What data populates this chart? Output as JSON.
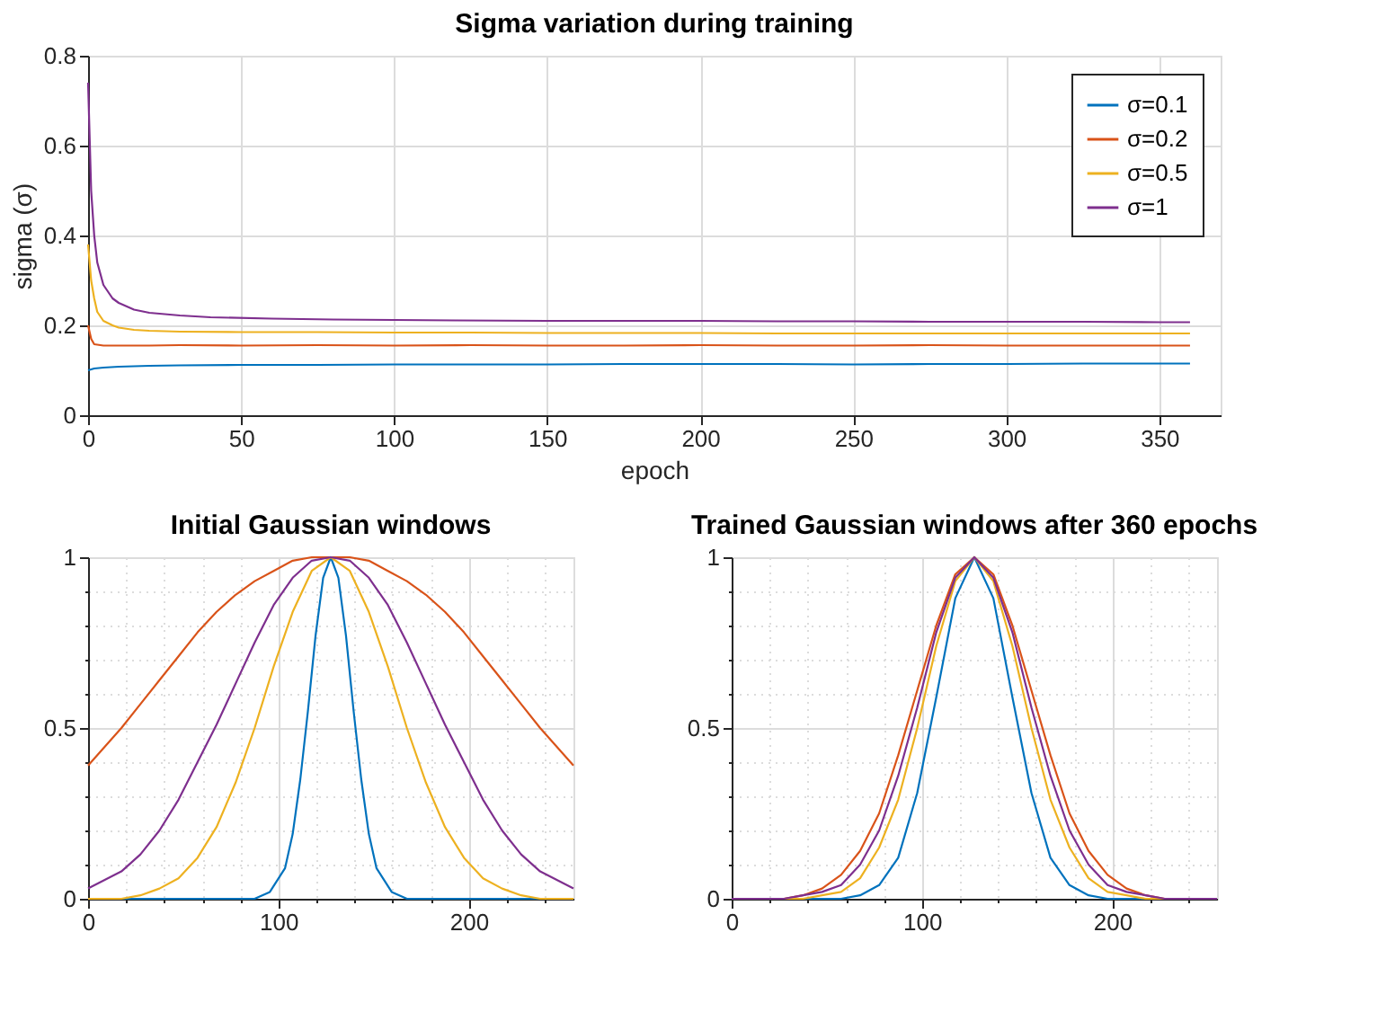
{
  "chart_data": [
    {
      "type": "line",
      "title": "Sigma variation during training",
      "xlabel": "epoch",
      "ylabel": "sigma (σ)",
      "xlim": [
        0,
        370
      ],
      "xticks": [
        0,
        50,
        100,
        150,
        200,
        250,
        300,
        350
      ],
      "ylim": [
        0,
        0.8
      ],
      "yticks": [
        0,
        0.2,
        0.4,
        0.6,
        0.8
      ],
      "grid": true,
      "legend": "top right",
      "series": [
        {
          "name": "σ=0.1",
          "color": "#0072bd",
          "x": [
            0,
            2,
            5,
            10,
            20,
            30,
            50,
            75,
            100,
            125,
            150,
            175,
            200,
            225,
            250,
            275,
            300,
            325,
            350,
            360
          ],
          "values": [
            0.1,
            0.104,
            0.106,
            0.108,
            0.11,
            0.111,
            0.112,
            0.112,
            0.113,
            0.113,
            0.113,
            0.114,
            0.114,
            0.114,
            0.113,
            0.114,
            0.114,
            0.115,
            0.115,
            0.115
          ]
        },
        {
          "name": "σ=0.2",
          "color": "#d95319",
          "x": [
            0,
            1,
            2,
            5,
            10,
            20,
            30,
            50,
            75,
            100,
            125,
            150,
            175,
            200,
            225,
            250,
            275,
            300,
            325,
            350,
            360
          ],
          "values": [
            0.2,
            0.17,
            0.158,
            0.155,
            0.155,
            0.155,
            0.156,
            0.155,
            0.156,
            0.155,
            0.156,
            0.155,
            0.155,
            0.156,
            0.155,
            0.155,
            0.156,
            0.155,
            0.155,
            0.155,
            0.155
          ]
        },
        {
          "name": "σ=0.5",
          "color": "#edb120",
          "x": [
            0,
            1,
            2,
            3,
            5,
            8,
            10,
            15,
            20,
            30,
            50,
            75,
            100,
            125,
            150,
            175,
            200,
            225,
            250,
            275,
            300,
            325,
            350,
            360
          ],
          "values": [
            0.38,
            0.3,
            0.26,
            0.23,
            0.21,
            0.2,
            0.195,
            0.19,
            0.188,
            0.186,
            0.185,
            0.185,
            0.184,
            0.184,
            0.183,
            0.183,
            0.183,
            0.182,
            0.182,
            0.182,
            0.182,
            0.182,
            0.182,
            0.182
          ]
        },
        {
          "name": "σ=1",
          "color": "#7e2f8e",
          "x": [
            0,
            1,
            2,
            3,
            5,
            8,
            10,
            15,
            20,
            30,
            40,
            60,
            80,
            100,
            120,
            150,
            175,
            200,
            225,
            250,
            275,
            300,
            325,
            350,
            360
          ],
          "values": [
            0.74,
            0.5,
            0.4,
            0.34,
            0.29,
            0.26,
            0.25,
            0.235,
            0.228,
            0.222,
            0.218,
            0.215,
            0.213,
            0.212,
            0.211,
            0.21,
            0.21,
            0.21,
            0.209,
            0.209,
            0.208,
            0.208,
            0.208,
            0.207,
            0.207
          ]
        }
      ]
    },
    {
      "type": "line",
      "title": "Initial Gaussian windows",
      "xlim": [
        0,
        255
      ],
      "xticks": [
        0,
        {
          "value": 20,
          "label": null
        },
        {
          "value": 40,
          "label": null
        },
        {
          "value": 60,
          "label": null
        },
        {
          "value": 80,
          "label": null
        },
        100,
        {
          "value": 120,
          "label": null
        },
        {
          "value": 140,
          "label": null
        },
        {
          "value": 160,
          "label": null
        },
        {
          "value": 180,
          "label": null
        },
        200,
        {
          "value": 220,
          "label": null
        },
        {
          "value": 240,
          "label": null
        }
      ],
      "ylim": [
        0,
        1
      ],
      "yticks": [
        0,
        {
          "value": 0.1,
          "label": null
        },
        {
          "value": 0.2,
          "label": null
        },
        {
          "value": 0.3,
          "label": null
        },
        {
          "value": 0.4,
          "label": null
        },
        0.5,
        {
          "value": 0.6,
          "label": null
        },
        {
          "value": 0.7,
          "label": null
        },
        {
          "value": 0.8,
          "label": null
        },
        {
          "value": 0.9,
          "label": null
        },
        1
      ],
      "grid": true,
      "series": [
        {
          "color": "#0072bd",
          "x": [
            0,
            87.5,
            95.5,
            103.5,
            107.5,
            111.5,
            115.5,
            119.5,
            123.5,
            127.5,
            131.5,
            135.5,
            139.5,
            143.5,
            147.5,
            151.5,
            159.5,
            167.5,
            255
          ],
          "values": [
            0,
            0,
            0.02,
            0.09,
            0.19,
            0.35,
            0.55,
            0.77,
            0.94,
            1,
            0.94,
            0.77,
            0.55,
            0.35,
            0.19,
            0.09,
            0.02,
            0,
            0
          ]
        },
        {
          "color": "#d95319",
          "x": [
            0,
            17.5,
            27.5,
            37.5,
            47.5,
            57.5,
            67.5,
            77.5,
            87.5,
            97.5,
            107.5,
            117.5,
            127.5,
            137.5,
            147.5,
            157.5,
            167.5,
            177.5,
            187.5,
            197.5,
            207.5,
            217.5,
            227.5,
            237.5,
            255
          ],
          "values": [
            0.39,
            0.5,
            0.57,
            0.64,
            0.71,
            0.78,
            0.84,
            0.89,
            0.93,
            0.96,
            0.99,
            1,
            1,
            1,
            0.99,
            0.96,
            0.93,
            0.89,
            0.84,
            0.78,
            0.71,
            0.64,
            0.57,
            0.5,
            0.39
          ]
        },
        {
          "color": "#edb120",
          "x": [
            0,
            17.5,
            27.5,
            37.5,
            47.5,
            57.5,
            67.5,
            77.5,
            87.5,
            97.5,
            107.5,
            117.5,
            127.5,
            137.5,
            147.5,
            157.5,
            167.5,
            177.5,
            187.5,
            197.5,
            207.5,
            217.5,
            227.5,
            237.5,
            255
          ],
          "values": [
            0,
            0,
            0.01,
            0.03,
            0.06,
            0.12,
            0.21,
            0.34,
            0.5,
            0.68,
            0.84,
            0.96,
            1,
            0.96,
            0.84,
            0.68,
            0.5,
            0.34,
            0.21,
            0.12,
            0.06,
            0.03,
            0.01,
            0,
            0
          ]
        },
        {
          "color": "#7e2f8e",
          "x": [
            0,
            17.5,
            27.5,
            37.5,
            47.5,
            57.5,
            67.5,
            77.5,
            87.5,
            97.5,
            107.5,
            117.5,
            127.5,
            137.5,
            147.5,
            157.5,
            167.5,
            177.5,
            187.5,
            197.5,
            207.5,
            217.5,
            227.5,
            237.5,
            255
          ],
          "values": [
            0.03,
            0.08,
            0.13,
            0.2,
            0.29,
            0.4,
            0.51,
            0.63,
            0.75,
            0.86,
            0.94,
            0.99,
            1,
            0.99,
            0.94,
            0.86,
            0.75,
            0.63,
            0.51,
            0.4,
            0.29,
            0.2,
            0.13,
            0.08,
            0.03
          ]
        }
      ]
    },
    {
      "type": "line",
      "title": "Trained Gaussian windows after 360 epochs",
      "xlim": [
        0,
        255
      ],
      "xticks": [
        0,
        {
          "value": 20,
          "label": null
        },
        {
          "value": 40,
          "label": null
        },
        {
          "value": 60,
          "label": null
        },
        {
          "value": 80,
          "label": null
        },
        100,
        {
          "value": 120,
          "label": null
        },
        {
          "value": 140,
          "label": null
        },
        {
          "value": 160,
          "label": null
        },
        {
          "value": 180,
          "label": null
        },
        200,
        {
          "value": 220,
          "label": null
        },
        {
          "value": 240,
          "label": null
        }
      ],
      "ylim": [
        0,
        1
      ],
      "yticks": [
        0,
        {
          "value": 0.1,
          "label": null
        },
        {
          "value": 0.2,
          "label": null
        },
        {
          "value": 0.3,
          "label": null
        },
        {
          "value": 0.4,
          "label": null
        },
        0.5,
        {
          "value": 0.6,
          "label": null
        },
        {
          "value": 0.7,
          "label": null
        },
        {
          "value": 0.8,
          "label": null
        },
        {
          "value": 0.9,
          "label": null
        },
        1
      ],
      "grid": true,
      "series": [
        {
          "color": "#0072bd",
          "x": [
            0,
            47.5,
            57.5,
            67.5,
            77.5,
            87.5,
            97.5,
            107.5,
            117.5,
            127.5,
            137.5,
            147.5,
            157.5,
            167.5,
            177.5,
            187.5,
            197.5,
            207.5,
            255
          ],
          "values": [
            0,
            0,
            0,
            0.01,
            0.04,
            0.12,
            0.31,
            0.59,
            0.88,
            1,
            0.88,
            0.59,
            0.31,
            0.12,
            0.04,
            0.01,
            0,
            0,
            0
          ]
        },
        {
          "color": "#d95319",
          "x": [
            0,
            27.5,
            37.5,
            47.5,
            57.5,
            67.5,
            77.5,
            87.5,
            97.5,
            107.5,
            117.5,
            127.5,
            137.5,
            147.5,
            157.5,
            167.5,
            177.5,
            187.5,
            197.5,
            207.5,
            217.5,
            227.5,
            255
          ],
          "values": [
            0,
            0,
            0.01,
            0.03,
            0.07,
            0.14,
            0.25,
            0.42,
            0.61,
            0.8,
            0.95,
            1,
            0.95,
            0.8,
            0.61,
            0.42,
            0.25,
            0.14,
            0.07,
            0.03,
            0.01,
            0,
            0
          ]
        },
        {
          "color": "#edb120",
          "x": [
            0,
            37.5,
            47.5,
            57.5,
            67.5,
            77.5,
            87.5,
            97.5,
            107.5,
            117.5,
            127.5,
            137.5,
            147.5,
            157.5,
            167.5,
            177.5,
            187.5,
            197.5,
            207.5,
            217.5,
            255
          ],
          "values": [
            0,
            0,
            0.01,
            0.02,
            0.06,
            0.15,
            0.29,
            0.5,
            0.74,
            0.93,
            1,
            0.93,
            0.74,
            0.5,
            0.29,
            0.15,
            0.06,
            0.02,
            0.01,
            0,
            0
          ]
        },
        {
          "color": "#7e2f8e",
          "x": [
            0,
            27.5,
            37.5,
            47.5,
            57.5,
            67.5,
            77.5,
            87.5,
            97.5,
            107.5,
            117.5,
            127.5,
            137.5,
            147.5,
            157.5,
            167.5,
            177.5,
            187.5,
            197.5,
            207.5,
            217.5,
            227.5,
            255
          ],
          "values": [
            0,
            0,
            0.01,
            0.02,
            0.04,
            0.1,
            0.2,
            0.36,
            0.56,
            0.78,
            0.94,
            1,
            0.94,
            0.78,
            0.56,
            0.36,
            0.2,
            0.1,
            0.04,
            0.02,
            0.01,
            0,
            0
          ]
        }
      ]
    }
  ]
}
